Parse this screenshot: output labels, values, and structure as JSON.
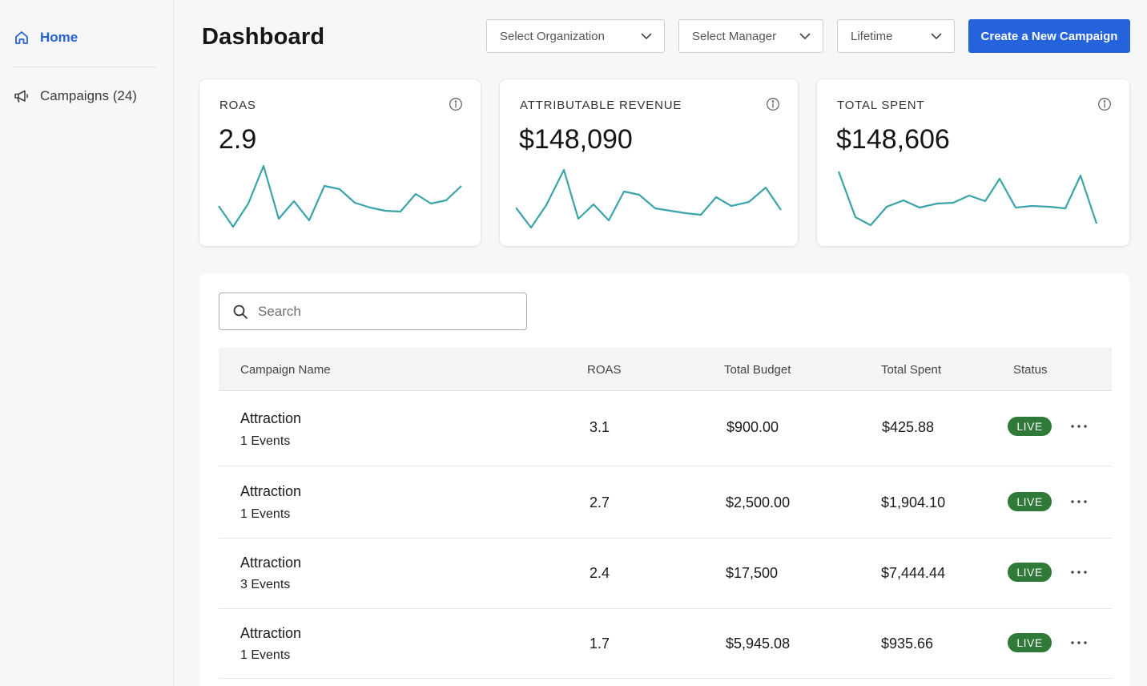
{
  "sidebar": {
    "items": [
      {
        "label": "Home",
        "icon": "home-icon",
        "active": true
      },
      {
        "label": "Campaigns (24)",
        "icon": "megaphone-icon",
        "active": false
      }
    ]
  },
  "header": {
    "title": "Dashboard",
    "filters": {
      "organization": "Select Organization",
      "manager": "Select Manager",
      "period": "Lifetime"
    },
    "create_button": "Create a New Campaign"
  },
  "colors": {
    "primary": "#2463db",
    "sparkline": "#3aa4aa",
    "live_badge": "#2f7a38"
  },
  "stats": [
    {
      "label": "ROAS",
      "value": "2.9"
    },
    {
      "label": "ATTRIBUTABLE REVENUE",
      "value": "$148,090"
    },
    {
      "label": "TOTAL SPENT",
      "value": "$148,606"
    }
  ],
  "search": {
    "placeholder": "Search",
    "value": ""
  },
  "table": {
    "columns": [
      "Campaign Name",
      "ROAS",
      "Total Budget",
      "Total Spent",
      "Status"
    ],
    "rows": [
      {
        "name": "Attraction",
        "events": "1 Events",
        "roas": "3.1",
        "budget": "$900.00",
        "spent": "$425.88",
        "status": "LIVE"
      },
      {
        "name": "Attraction",
        "events": "1 Events",
        "roas": "2.7",
        "budget": "$2,500.00",
        "spent": "$1,904.10",
        "status": "LIVE"
      },
      {
        "name": "Attraction",
        "events": "3 Events",
        "roas": "2.4",
        "budget": "$17,500",
        "spent": "$7,444.44",
        "status": "LIVE"
      },
      {
        "name": "Attraction",
        "events": "1 Events",
        "roas": "1.7",
        "budget": "$5,945.08",
        "spent": "$935.66",
        "status": "LIVE"
      }
    ]
  }
}
